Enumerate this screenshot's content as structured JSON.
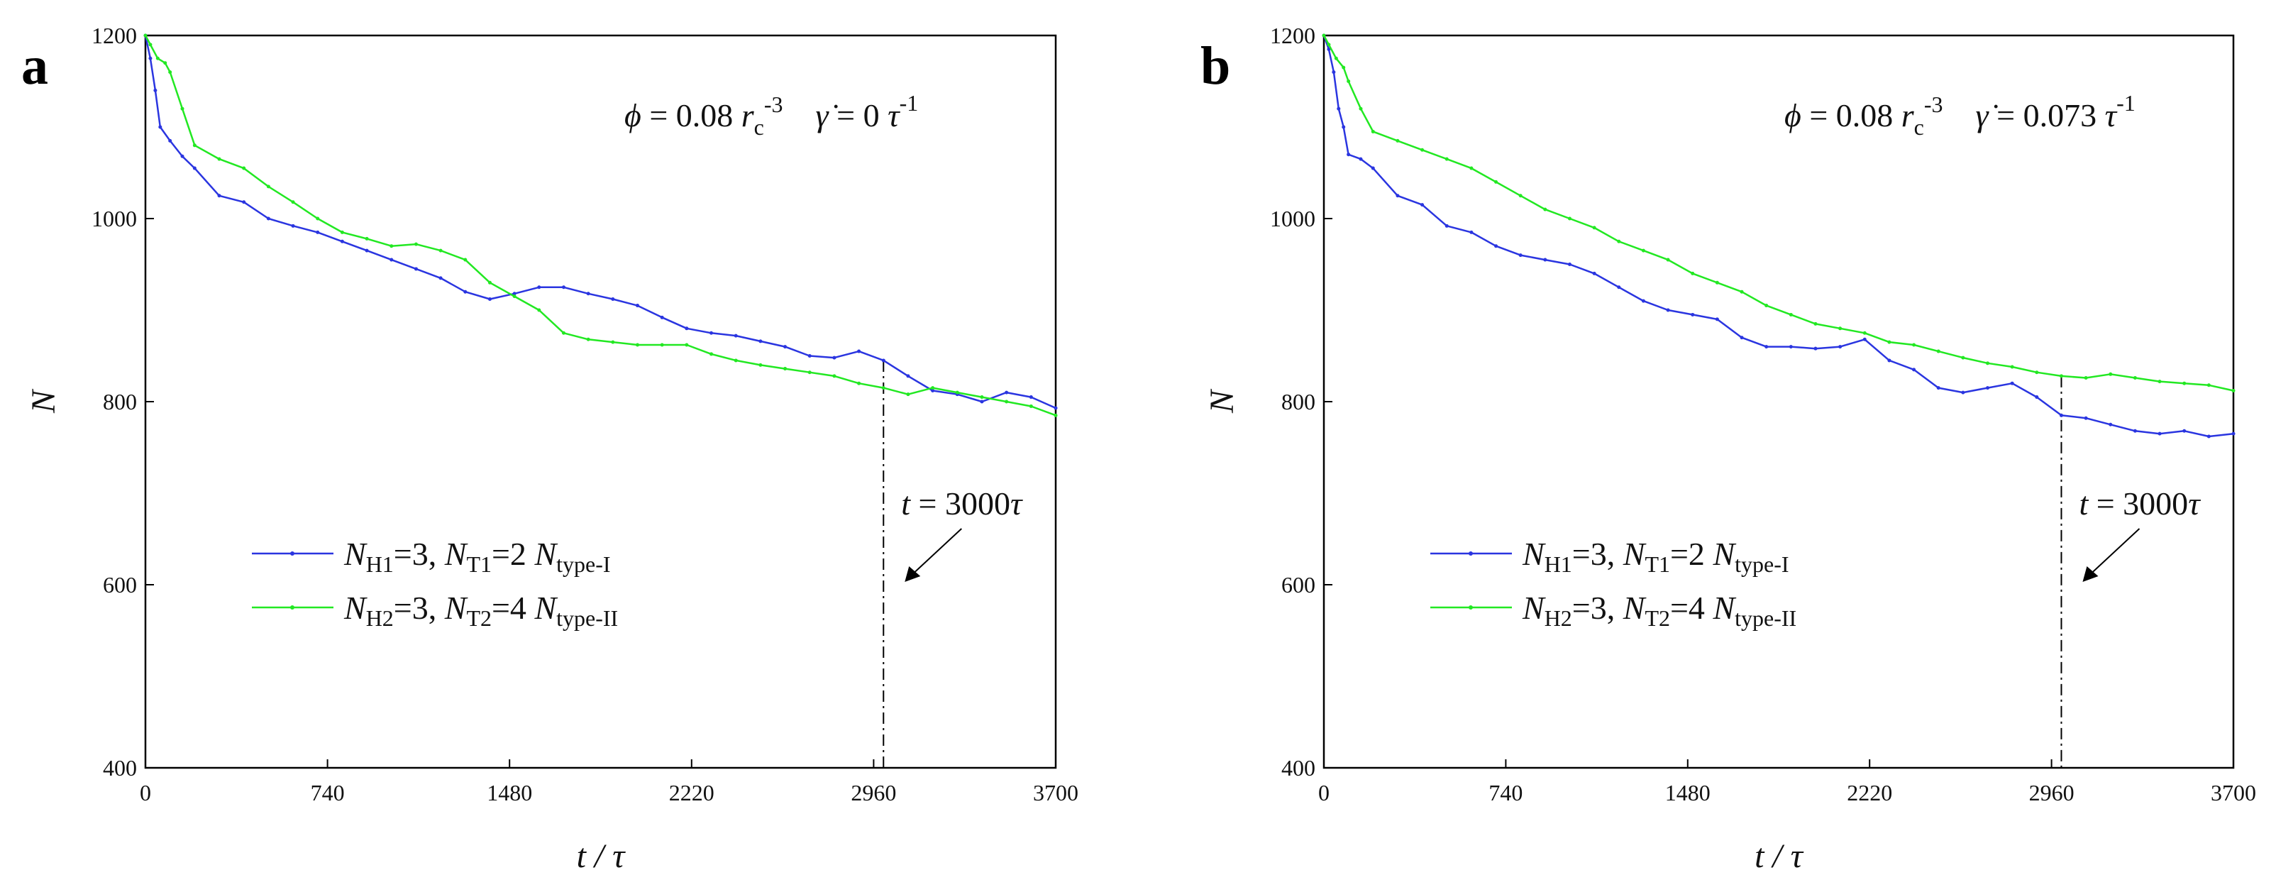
{
  "figure": {
    "colors": {
      "series1": "#2a35e0",
      "series2": "#22e822",
      "axis": "#000000"
    }
  },
  "chart_data": [
    {
      "type": "line",
      "panel_label": "a",
      "annotation": "ϕ = 0.08 rc⁻³  γ̇ = 0 τ⁻¹",
      "xlabel": "t / τ",
      "ylabel": "N",
      "xlim": [
        0,
        3700
      ],
      "ylim": [
        400,
        1200
      ],
      "x_ticks": [
        0,
        740,
        1480,
        2220,
        2960,
        3700
      ],
      "y_ticks": [
        400,
        600,
        800,
        1000,
        1200
      ],
      "marker_line": {
        "x": 3000,
        "label": "t = 3000τ"
      },
      "series": [
        {
          "name": "NH1=3, NT1=2  Ntype-I",
          "color": "#2a35e0",
          "x": [
            0,
            20,
            40,
            60,
            100,
            150,
            200,
            300,
            400,
            500,
            600,
            700,
            800,
            900,
            1000,
            1100,
            1200,
            1300,
            1400,
            1500,
            1600,
            1700,
            1800,
            1900,
            2000,
            2100,
            2200,
            2300,
            2400,
            2500,
            2600,
            2700,
            2800,
            2900,
            3000,
            3100,
            3200,
            3300,
            3400,
            3500,
            3600,
            3700
          ],
          "y": [
            1200,
            1175,
            1140,
            1100,
            1085,
            1068,
            1055,
            1025,
            1018,
            1000,
            992,
            985,
            975,
            965,
            955,
            945,
            935,
            920,
            912,
            918,
            925,
            925,
            918,
            912,
            905,
            892,
            880,
            875,
            872,
            866,
            860,
            850,
            848,
            855,
            845,
            828,
            812,
            808,
            800,
            810,
            805,
            793
          ]
        },
        {
          "name": "NH2=3, NT2=4  Ntype-II",
          "color": "#22e822",
          "x": [
            0,
            20,
            50,
            80,
            100,
            150,
            200,
            300,
            400,
            500,
            600,
            700,
            800,
            900,
            1000,
            1100,
            1200,
            1300,
            1400,
            1500,
            1600,
            1700,
            1800,
            1900,
            2000,
            2100,
            2200,
            2300,
            2400,
            2500,
            2600,
            2700,
            2800,
            2900,
            3000,
            3100,
            3200,
            3300,
            3400,
            3500,
            3600,
            3700
          ],
          "y": [
            1200,
            1190,
            1175,
            1170,
            1160,
            1120,
            1080,
            1065,
            1055,
            1035,
            1018,
            1000,
            985,
            978,
            970,
            972,
            965,
            955,
            930,
            915,
            900,
            875,
            868,
            865,
            862,
            862,
            862,
            852,
            845,
            840,
            836,
            832,
            828,
            820,
            815,
            808,
            815,
            810,
            805,
            800,
            795,
            785
          ]
        }
      ]
    },
    {
      "type": "line",
      "panel_label": "b",
      "annotation": "ϕ = 0.08 rc⁻³  γ̇ = 0.073 τ⁻¹",
      "xlabel": "t / τ",
      "ylabel": "N",
      "xlim": [
        0,
        3700
      ],
      "ylim": [
        400,
        1200
      ],
      "x_ticks": [
        0,
        740,
        1480,
        2220,
        2960,
        3700
      ],
      "y_ticks": [
        400,
        600,
        800,
        1000,
        1200
      ],
      "marker_line": {
        "x": 3000,
        "label": "t = 3000τ"
      },
      "series": [
        {
          "name": "NH1=3, NT1=2  Ntype-I",
          "color": "#2a35e0",
          "x": [
            0,
            20,
            40,
            60,
            80,
            100,
            150,
            200,
            300,
            400,
            500,
            600,
            700,
            800,
            900,
            1000,
            1100,
            1200,
            1300,
            1400,
            1500,
            1600,
            1700,
            1800,
            1900,
            2000,
            2100,
            2200,
            2300,
            2400,
            2500,
            2600,
            2700,
            2800,
            2900,
            3000,
            3100,
            3200,
            3300,
            3400,
            3500,
            3600,
            3700
          ],
          "y": [
            1200,
            1185,
            1160,
            1120,
            1100,
            1070,
            1065,
            1055,
            1025,
            1015,
            992,
            985,
            970,
            960,
            955,
            950,
            940,
            925,
            910,
            900,
            895,
            890,
            870,
            860,
            860,
            858,
            860,
            868,
            845,
            835,
            815,
            810,
            815,
            820,
            805,
            785,
            782,
            775,
            768,
            765,
            768,
            762,
            765
          ]
        },
        {
          "name": "NH2=3, NT2=4  Ntype-II",
          "color": "#22e822",
          "x": [
            0,
            20,
            50,
            80,
            100,
            150,
            200,
            300,
            400,
            500,
            600,
            700,
            800,
            900,
            1000,
            1100,
            1200,
            1300,
            1400,
            1500,
            1600,
            1700,
            1800,
            1900,
            2000,
            2100,
            2200,
            2300,
            2400,
            2500,
            2600,
            2700,
            2800,
            2900,
            3000,
            3100,
            3200,
            3300,
            3400,
            3500,
            3600,
            3700
          ],
          "y": [
            1200,
            1190,
            1175,
            1165,
            1150,
            1120,
            1095,
            1085,
            1075,
            1065,
            1055,
            1040,
            1025,
            1010,
            1000,
            990,
            975,
            965,
            955,
            940,
            930,
            920,
            905,
            895,
            885,
            880,
            875,
            865,
            862,
            855,
            848,
            842,
            838,
            832,
            828,
            826,
            830,
            826,
            822,
            820,
            818,
            812
          ]
        }
      ]
    }
  ]
}
